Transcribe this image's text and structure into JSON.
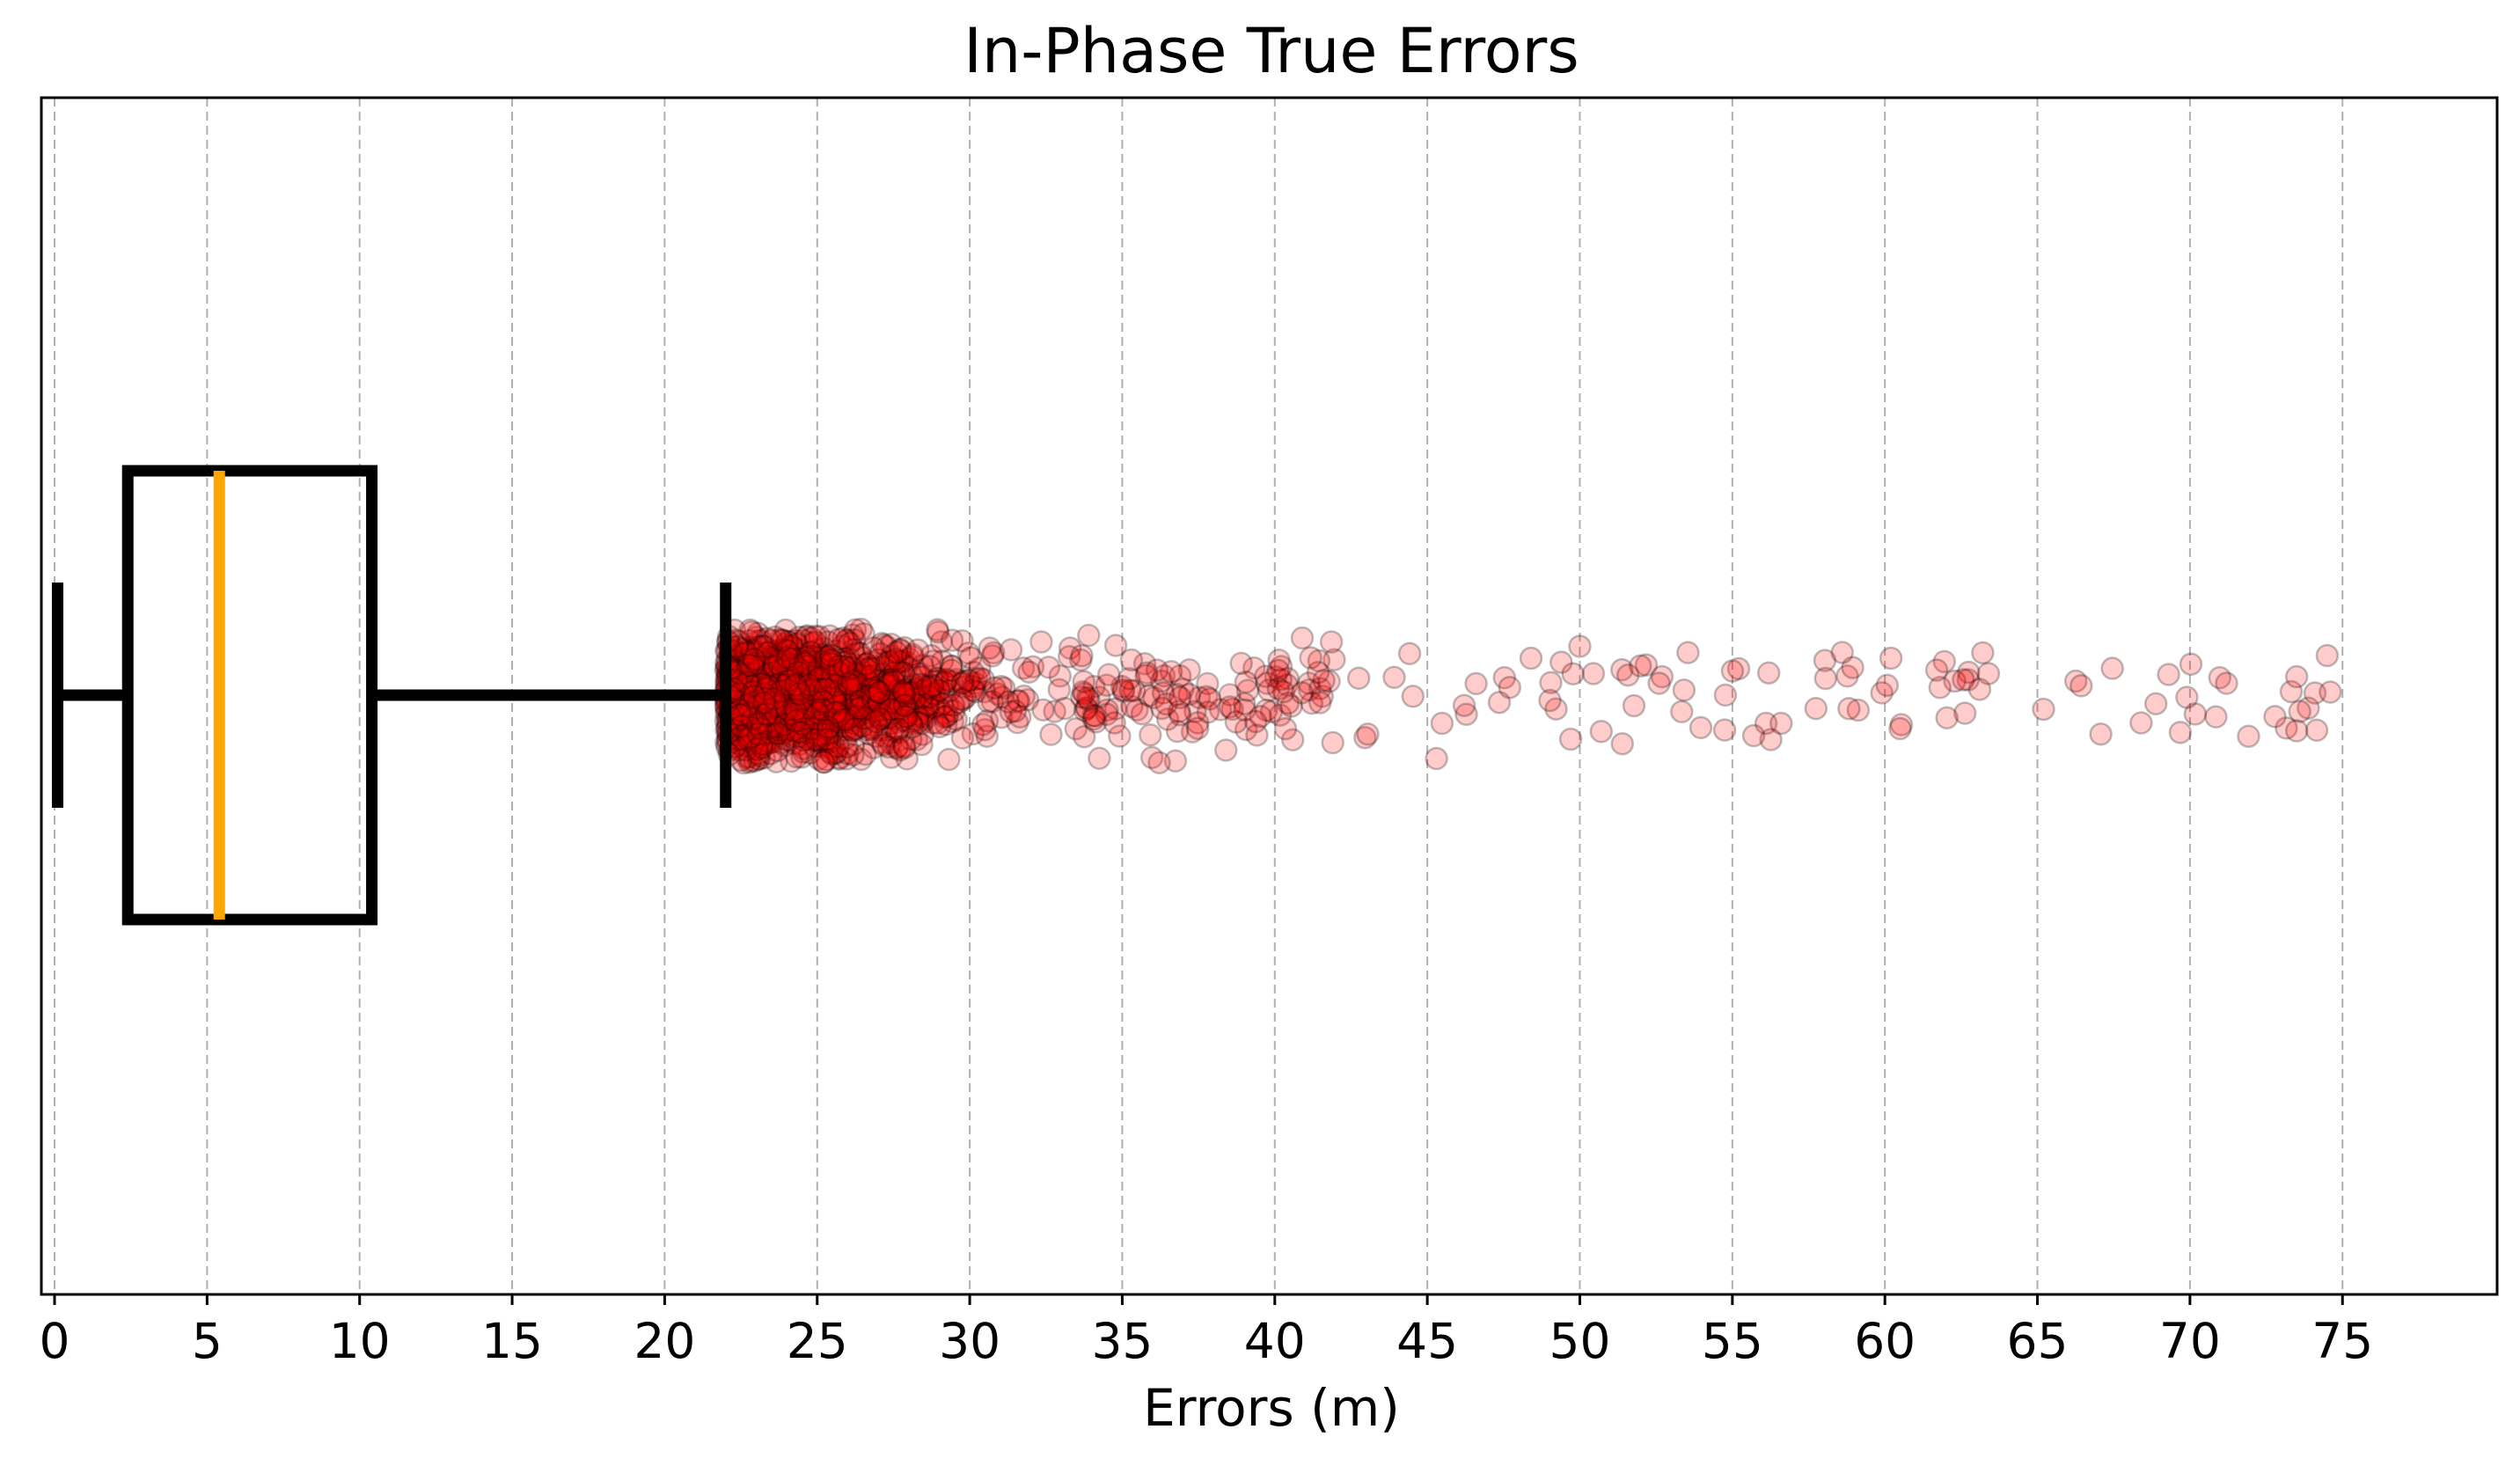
{
  "chart_data": {
    "type": "box-strip",
    "title": "In-Phase True Errors",
    "xlabel": "Errors (m)",
    "xlim": [
      -0.5,
      80
    ],
    "xticks": [
      0,
      5,
      10,
      15,
      20,
      25,
      30,
      35,
      40,
      45,
      50,
      55,
      60,
      65,
      70,
      75
    ],
    "grid": "x-dashed",
    "box": {
      "whisker_low": 0.1,
      "q1": 2.4,
      "median": 5.4,
      "q3": 10.4,
      "whisker_high": 22.0,
      "median_color": "#ffa500",
      "line_color": "#000000"
    },
    "outliers": {
      "color": "#ff0000",
      "opacity": 0.2,
      "edge_color": "#000000",
      "range": [
        22.0,
        74.6
      ],
      "approx_count": 1900,
      "sample_points": [
        [
          22.8,
          1.48
        ],
        [
          33.9,
          1.36
        ],
        [
          40.9,
          1.3
        ],
        [
          50.0,
          1.11
        ],
        [
          58.6,
          0.97
        ],
        [
          74.5,
          0.9
        ],
        [
          60.2,
          0.84
        ],
        [
          48.4,
          0.84
        ],
        [
          61.7,
          0.57
        ],
        [
          55.0,
          0.55
        ],
        [
          69.3,
          0.47
        ],
        [
          73.5,
          0.42
        ],
        [
          71.2,
          0.27
        ],
        [
          52.6,
          0.27
        ],
        [
          74.1,
          0.05
        ],
        [
          74.6,
          0.07
        ],
        [
          69.9,
          -0.05
        ],
        [
          65.2,
          -0.32
        ],
        [
          73.6,
          -0.37
        ],
        [
          68.4,
          -0.63
        ],
        [
          56.6,
          -0.64
        ],
        [
          60.5,
          -0.76
        ],
        [
          73.5,
          -0.81
        ],
        [
          55.7,
          -0.92
        ],
        [
          49.7,
          -1.0
        ],
        [
          41.9,
          -1.08
        ],
        [
          38.4,
          -1.25
        ],
        [
          45.3,
          -1.44
        ],
        [
          25.2,
          -1.52
        ],
        [
          22.5,
          -1.48
        ]
      ]
    }
  }
}
